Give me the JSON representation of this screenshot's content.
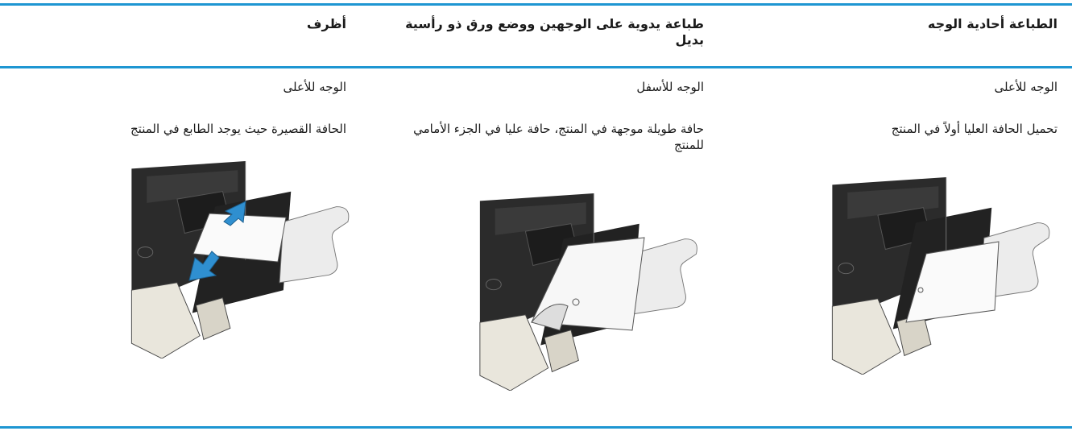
{
  "table": {
    "headers": [
      "الطباعة أحادية الوجه",
      "طباعة يدوية على الوجهين ووضع ورق ذو رأسية بديل",
      "أظرف"
    ],
    "rows": [
      [
        "الوجه للأعلى",
        "الوجه للأسفل",
        "الوجه للأعلى"
      ],
      [
        "تحميل الحافة العليا أولاً في المنتج",
        "حافة طويلة موجهة في المنتج، حافة عليا في الجزء الأمامي للمنتج",
        "الحافة القصيرة حيث يوجد الطابع في المنتج"
      ]
    ]
  }
}
